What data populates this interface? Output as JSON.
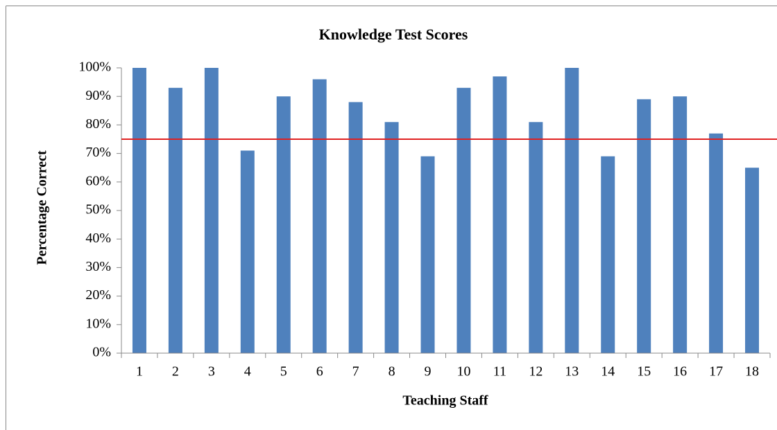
{
  "chart_data": {
    "type": "bar",
    "title": "Knowledge Test Scores",
    "x_label": "Teaching Staff",
    "y_label": "Percentage Correct",
    "categories": [
      "1",
      "2",
      "3",
      "4",
      "5",
      "6",
      "7",
      "8",
      "9",
      "10",
      "11",
      "12",
      "13",
      "14",
      "15",
      "16",
      "17",
      "18"
    ],
    "values": [
      100,
      93,
      100,
      71,
      90,
      96,
      88,
      81,
      69,
      93,
      97,
      81,
      100,
      69,
      89,
      90,
      77,
      65
    ],
    "color": "#4f81bd",
    "ylim": [
      0,
      100
    ],
    "yticks": [
      {
        "value": 0,
        "label": "0%"
      },
      {
        "value": 10,
        "label": "10%"
      },
      {
        "value": 20,
        "label": "20%"
      },
      {
        "value": 30,
        "label": "30%"
      },
      {
        "value": 40,
        "label": "40%"
      },
      {
        "value": 50,
        "label": "50%"
      },
      {
        "value": 60,
        "label": "60%"
      },
      {
        "value": 70,
        "label": "70%"
      },
      {
        "value": 80,
        "label": "80%"
      },
      {
        "value": 90,
        "label": "90%"
      },
      {
        "value": 100,
        "label": "100%"
      }
    ],
    "reference_line": {
      "value": 75,
      "color": "#e02020"
    },
    "grid": false
  }
}
